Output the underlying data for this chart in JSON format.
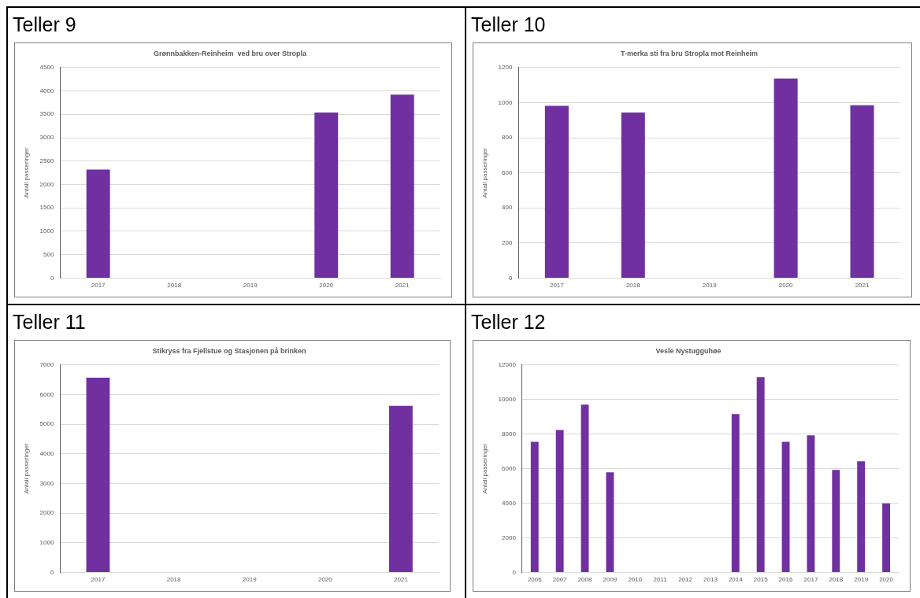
{
  "chart_data": [
    {
      "type": "bar",
      "title": "Teller 9",
      "subtitle": "Grønnbakken-Reinheim  ved bru over Stropla",
      "ylabel": "Antall passeringer",
      "categories": [
        "2017",
        "2018",
        "2019",
        "2020",
        "2021"
      ],
      "values": [
        2320,
        null,
        null,
        3540,
        3920
      ],
      "color": "#7030a0",
      "ylim": [
        0,
        4500
      ],
      "yticks": [
        0,
        500,
        1000,
        1500,
        2000,
        2500,
        3000,
        3500,
        4000,
        4500
      ],
      "grid": "y"
    },
    {
      "type": "bar",
      "title": "Teller 10",
      "subtitle": "T-merka sti fra bru Stropla mot Reinheim",
      "ylabel": "Antall passeringer",
      "categories": [
        "2017",
        "2018",
        "2019",
        "2020",
        "2021"
      ],
      "values": [
        982,
        944,
        null,
        1137,
        985
      ],
      "color": "#7030a0",
      "ylim": [
        0,
        1200
      ],
      "yticks": [
        0,
        200,
        400,
        600,
        800,
        1000,
        1200
      ],
      "grid": "y"
    },
    {
      "type": "bar",
      "title": "Teller 11",
      "subtitle": "Stikryss fra Fjellstue og Stasjonen på brinken",
      "ylabel": "Antall passeringer",
      "categories": [
        "2017",
        "2018",
        "2019",
        "2020",
        "2021"
      ],
      "values": [
        6570,
        null,
        null,
        null,
        5620
      ],
      "color": "#7030a0",
      "ylim": [
        0,
        7000
      ],
      "yticks": [
        0,
        1000,
        2000,
        3000,
        4000,
        5000,
        6000,
        7000
      ],
      "grid": "y"
    },
    {
      "type": "bar",
      "title": "Teller 12",
      "subtitle": "Vesle Nystugguhøe",
      "ylabel": "Antall passeringer",
      "categories": [
        "2006",
        "2007",
        "2008",
        "2009",
        "2010",
        "2011",
        "2012",
        "2013",
        "2014",
        "2015",
        "2016",
        "2017",
        "2018",
        "2019",
        "2020"
      ],
      "values": [
        7550,
        8230,
        9700,
        5790,
        null,
        null,
        null,
        null,
        9160,
        11300,
        7550,
        7930,
        5930,
        6430,
        3990
      ],
      "color": "#7030a0",
      "ylim": [
        0,
        12000
      ],
      "yticks": [
        0,
        2000,
        4000,
        6000,
        8000,
        10000,
        12000
      ],
      "grid": "y"
    }
  ]
}
